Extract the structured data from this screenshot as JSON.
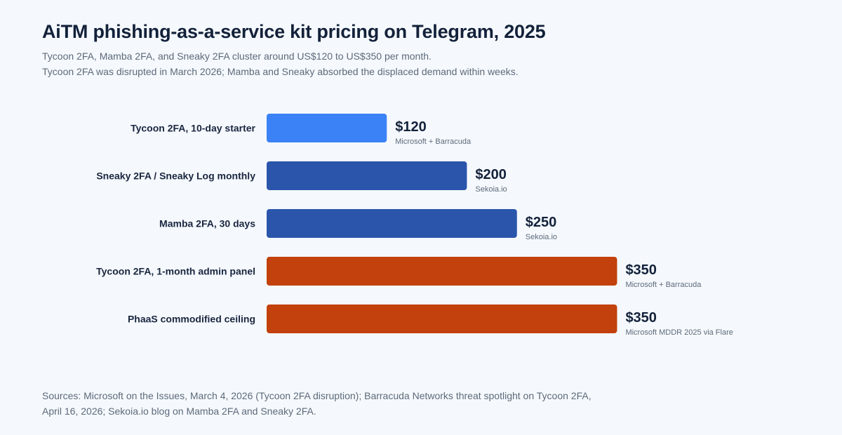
{
  "colors": {
    "light_blue": "#3b82f6",
    "blue": "#2b55ab",
    "orange": "#c2410c"
  },
  "chart_data": {
    "type": "bar",
    "orientation": "horizontal",
    "title": "AiTM phishing-as-a-service kit pricing on Telegram, 2025",
    "subtitle": [
      "Tycoon 2FA, Mamba 2FA, and Sneaky 2FA cluster around US$120 to US$350 per month.",
      "Tycoon 2FA was disrupted in March 2026; Mamba and Sneaky absorbed the displaced demand within weeks."
    ],
    "xlim": [
      0,
      400
    ],
    "grid": false,
    "categories": [
      "Tycoon 2FA, 10-day starter",
      "Sneaky 2FA / Sneaky Log monthly",
      "Mamba 2FA, 30 days",
      "Tycoon 2FA, 1-month admin panel",
      "PhaaS commodified ceiling"
    ],
    "values": [
      120,
      200,
      250,
      350,
      350
    ],
    "value_labels": [
      "$120",
      "$200",
      "$250",
      "$350",
      "$350"
    ],
    "source_labels": [
      "Microsoft + Barracuda",
      "Sekoia.io",
      "Sekoia.io",
      "Microsoft + Barracuda",
      "Microsoft MDDR 2025 via Flare"
    ],
    "bar_colors": [
      "#3b82f6",
      "#2b55ab",
      "#2b55ab",
      "#c2410c",
      "#c2410c"
    ]
  },
  "sources": [
    "Sources: Microsoft on the Issues, March 4, 2026 (Tycoon 2FA disruption); Barracuda Networks threat spotlight on Tycoon 2FA,",
    "April 16, 2026; Sekoia.io blog on Mamba 2FA and Sneaky 2FA."
  ]
}
